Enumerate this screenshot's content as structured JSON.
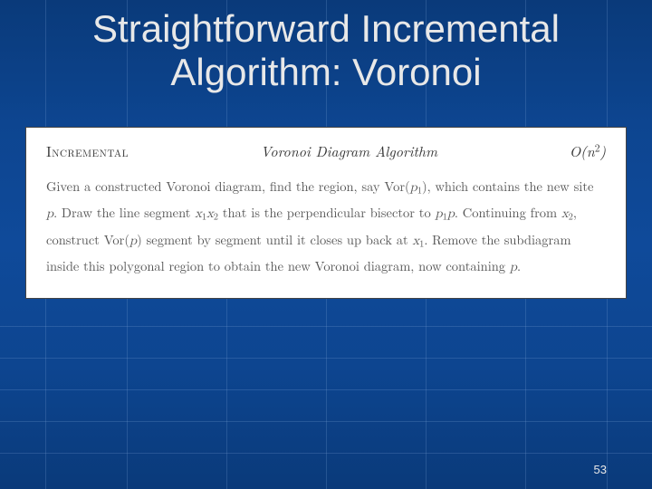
{
  "slide": {
    "title": "Straightforward Incremental Algorithm: Voronoi",
    "background_gradient": [
      "#0a3a7a",
      "#0d4590",
      "#0f4a9a"
    ],
    "grid_line_color": "rgba(120,160,210,0.25)",
    "title_color": "#e8e8e8",
    "title_fontsize": 42,
    "title_font": "Comic Sans MS"
  },
  "algorithm": {
    "box_bg": "#ffffff",
    "box_border": "#444444",
    "header_left": "Incremental",
    "header_mid": "Voronoi Diagram Algorithm",
    "header_right_html": "O(n<sup>2</sup>)",
    "body_html": "Given a constructed Voronoi diagram, find the region, say Vor(<span class=\"math\">p</span><sub>1</sub>), which contains the new site <span class=\"math\">p</span>. Draw the line segment <span class=\"math\">x</span><sub>1</sub><span class=\"math\">x</span><sub>2</sub> that is the perpendicular bisector to <span class=\"math\">p</span><sub>1</sub><span class=\"math\">p</span>. Continuing from <span class=\"math\">x</span><sub>2</sub>, construct Vor(<span class=\"math\">p</span>) segment by segment until it closes up back at <span class=\"math\">x</span><sub>1</sub>. Remove the subdiagram inside this polygonal region to obtain the new Voronoi diagram, now containing <span class=\"math\">p</span>.",
    "body_fontsize": 14.5,
    "body_color": "#555555",
    "header_fontsize": 16
  },
  "page_number": "53",
  "grid": {
    "vertical_x": [
      50,
      140,
      250,
      360,
      470,
      580,
      670
    ],
    "horizontal_y": [
      360,
      395,
      430,
      465,
      500
    ]
  }
}
